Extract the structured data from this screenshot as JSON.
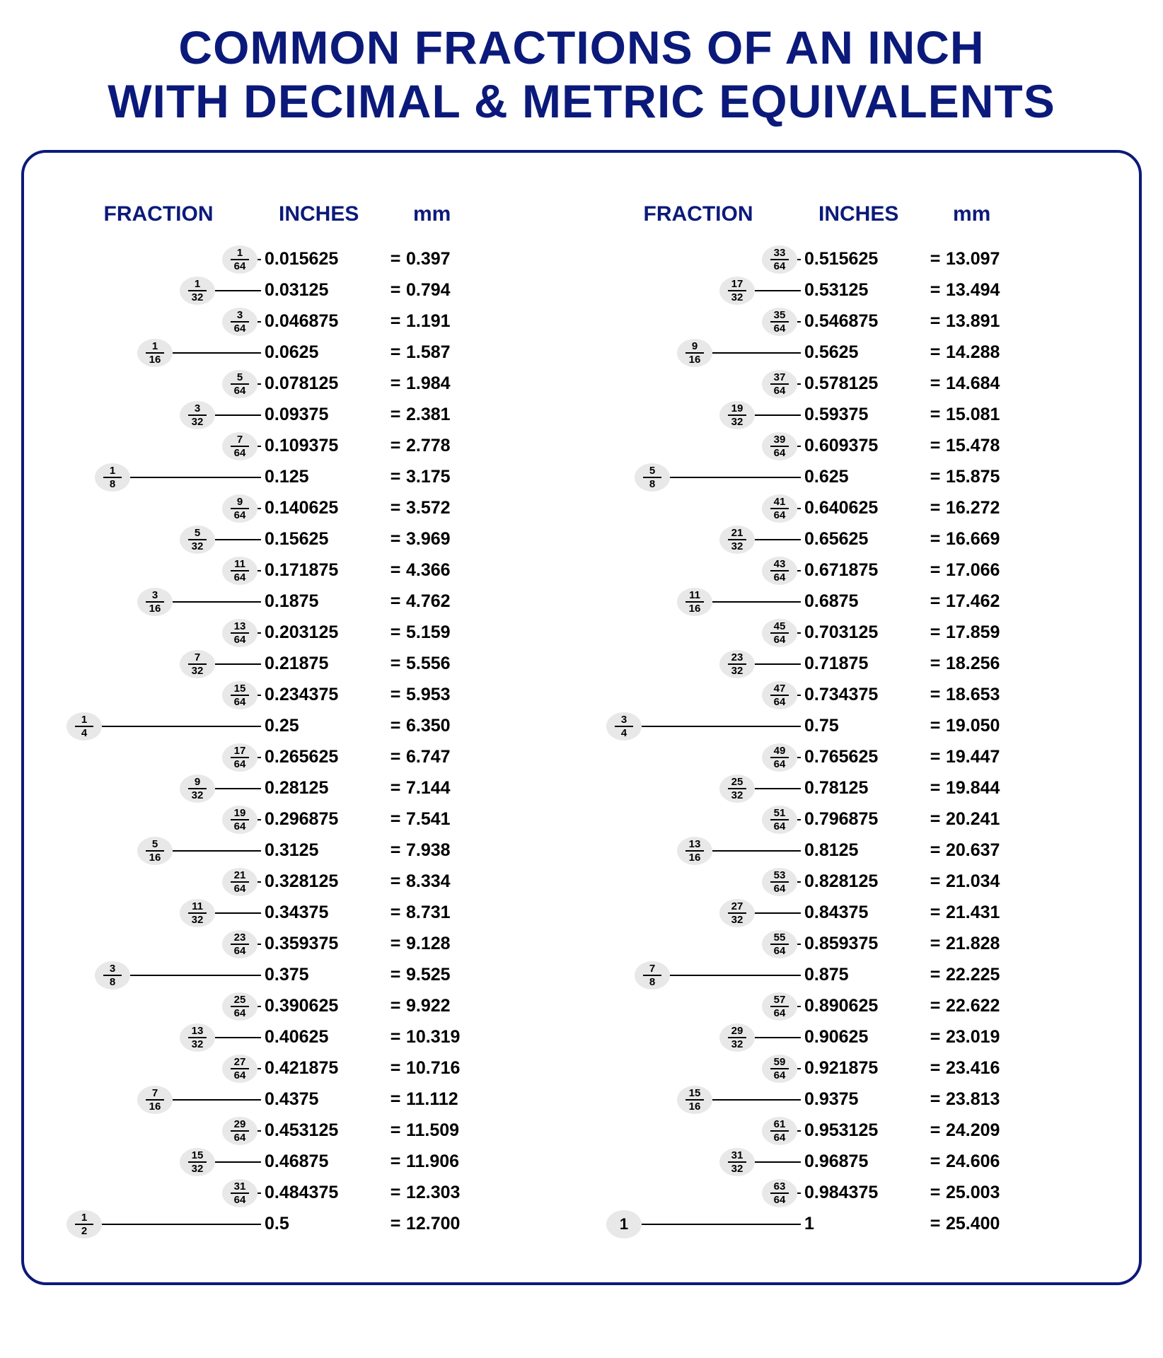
{
  "title_line1": "COMMON FRACTIONS OF AN INCH",
  "title_line2": "WITH DECIMAL & METRIC EQUIVALENTS",
  "headers": {
    "fraction": "FRACTION",
    "inches": "INCHES",
    "mm": "mm"
  },
  "colors": {
    "heading": "#0b1a7a",
    "pill_bg": "#e8e8e8",
    "text": "#000000",
    "background": "#ffffff"
  },
  "slots": {
    "d64": 240,
    "d32": 180,
    "d16": 120,
    "d8": 60,
    "d4": 20,
    "d2": 20,
    "whole": 20
  },
  "line_end": 295,
  "left": [
    {
      "inches": "0.015625",
      "mm": "0.397",
      "fracs": [
        {
          "n": "1",
          "d": "64",
          "slot": "d64"
        }
      ]
    },
    {
      "inches": "0.03125",
      "mm": "0.794",
      "fracs": [
        {
          "n": "1",
          "d": "32",
          "slot": "d32"
        }
      ]
    },
    {
      "inches": "0.046875",
      "mm": "1.191",
      "fracs": [
        {
          "n": "3",
          "d": "64",
          "slot": "d64"
        }
      ]
    },
    {
      "inches": "0.0625",
      "mm": "1.587",
      "fracs": [
        {
          "n": "1",
          "d": "16",
          "slot": "d16"
        }
      ]
    },
    {
      "inches": "0.078125",
      "mm": "1.984",
      "fracs": [
        {
          "n": "5",
          "d": "64",
          "slot": "d64"
        }
      ]
    },
    {
      "inches": "0.09375",
      "mm": "2.381",
      "fracs": [
        {
          "n": "3",
          "d": "32",
          "slot": "d32"
        }
      ]
    },
    {
      "inches": "0.109375",
      "mm": "2.778",
      "fracs": [
        {
          "n": "7",
          "d": "64",
          "slot": "d64"
        }
      ]
    },
    {
      "inches": "0.125",
      "mm": "3.175",
      "fracs": [
        {
          "n": "1",
          "d": "8",
          "slot": "d8"
        }
      ]
    },
    {
      "inches": "0.140625",
      "mm": "3.572",
      "fracs": [
        {
          "n": "9",
          "d": "64",
          "slot": "d64"
        }
      ]
    },
    {
      "inches": "0.15625",
      "mm": "3.969",
      "fracs": [
        {
          "n": "5",
          "d": "32",
          "slot": "d32"
        }
      ]
    },
    {
      "inches": "0.171875",
      "mm": "4.366",
      "fracs": [
        {
          "n": "11",
          "d": "64",
          "slot": "d64"
        }
      ]
    },
    {
      "inches": "0.1875",
      "mm": "4.762",
      "fracs": [
        {
          "n": "3",
          "d": "16",
          "slot": "d16"
        }
      ]
    },
    {
      "inches": "0.203125",
      "mm": "5.159",
      "fracs": [
        {
          "n": "13",
          "d": "64",
          "slot": "d64"
        }
      ]
    },
    {
      "inches": "0.21875",
      "mm": "5.556",
      "fracs": [
        {
          "n": "7",
          "d": "32",
          "slot": "d32"
        }
      ]
    },
    {
      "inches": "0.234375",
      "mm": "5.953",
      "fracs": [
        {
          "n": "15",
          "d": "64",
          "slot": "d64"
        }
      ]
    },
    {
      "inches": "0.25",
      "mm": "6.350",
      "fracs": [
        {
          "n": "1",
          "d": "4",
          "slot": "d4"
        }
      ]
    },
    {
      "inches": "0.265625",
      "mm": "6.747",
      "fracs": [
        {
          "n": "17",
          "d": "64",
          "slot": "d64"
        }
      ]
    },
    {
      "inches": "0.28125",
      "mm": "7.144",
      "fracs": [
        {
          "n": "9",
          "d": "32",
          "slot": "d32"
        }
      ]
    },
    {
      "inches": "0.296875",
      "mm": "7.541",
      "fracs": [
        {
          "n": "19",
          "d": "64",
          "slot": "d64"
        }
      ]
    },
    {
      "inches": "0.3125",
      "mm": "7.938",
      "fracs": [
        {
          "n": "5",
          "d": "16",
          "slot": "d16"
        }
      ]
    },
    {
      "inches": "0.328125",
      "mm": "8.334",
      "fracs": [
        {
          "n": "21",
          "d": "64",
          "slot": "d64"
        }
      ]
    },
    {
      "inches": "0.34375",
      "mm": "8.731",
      "fracs": [
        {
          "n": "11",
          "d": "32",
          "slot": "d32"
        }
      ]
    },
    {
      "inches": "0.359375",
      "mm": "9.128",
      "fracs": [
        {
          "n": "23",
          "d": "64",
          "slot": "d64"
        }
      ]
    },
    {
      "inches": "0.375",
      "mm": "9.525",
      "fracs": [
        {
          "n": "3",
          "d": "8",
          "slot": "d8"
        }
      ]
    },
    {
      "inches": "0.390625",
      "mm": "9.922",
      "fracs": [
        {
          "n": "25",
          "d": "64",
          "slot": "d64"
        }
      ]
    },
    {
      "inches": "0.40625",
      "mm": "10.319",
      "fracs": [
        {
          "n": "13",
          "d": "32",
          "slot": "d32"
        }
      ]
    },
    {
      "inches": "0.421875",
      "mm": "10.716",
      "fracs": [
        {
          "n": "27",
          "d": "64",
          "slot": "d64"
        }
      ]
    },
    {
      "inches": "0.4375",
      "mm": "11.112",
      "fracs": [
        {
          "n": "7",
          "d": "16",
          "slot": "d16"
        }
      ]
    },
    {
      "inches": "0.453125",
      "mm": "11.509",
      "fracs": [
        {
          "n": "29",
          "d": "64",
          "slot": "d64"
        }
      ]
    },
    {
      "inches": "0.46875",
      "mm": "11.906",
      "fracs": [
        {
          "n": "15",
          "d": "32",
          "slot": "d32"
        }
      ]
    },
    {
      "inches": "0.484375",
      "mm": "12.303",
      "fracs": [
        {
          "n": "31",
          "d": "64",
          "slot": "d64"
        }
      ]
    },
    {
      "inches": "0.5",
      "mm": "12.700",
      "fracs": [
        {
          "n": "1",
          "d": "2",
          "slot": "d2"
        }
      ]
    }
  ],
  "right": [
    {
      "inches": "0.515625",
      "mm": "13.097",
      "fracs": [
        {
          "n": "33",
          "d": "64",
          "slot": "d64"
        }
      ]
    },
    {
      "inches": "0.53125",
      "mm": "13.494",
      "fracs": [
        {
          "n": "17",
          "d": "32",
          "slot": "d32"
        }
      ]
    },
    {
      "inches": "0.546875",
      "mm": "13.891",
      "fracs": [
        {
          "n": "35",
          "d": "64",
          "slot": "d64"
        }
      ]
    },
    {
      "inches": "0.5625",
      "mm": "14.288",
      "fracs": [
        {
          "n": "9",
          "d": "16",
          "slot": "d16"
        }
      ]
    },
    {
      "inches": "0.578125",
      "mm": "14.684",
      "fracs": [
        {
          "n": "37",
          "d": "64",
          "slot": "d64"
        }
      ]
    },
    {
      "inches": "0.59375",
      "mm": "15.081",
      "fracs": [
        {
          "n": "19",
          "d": "32",
          "slot": "d32"
        }
      ]
    },
    {
      "inches": "0.609375",
      "mm": "15.478",
      "fracs": [
        {
          "n": "39",
          "d": "64",
          "slot": "d64"
        }
      ]
    },
    {
      "inches": "0.625",
      "mm": "15.875",
      "fracs": [
        {
          "n": "5",
          "d": "8",
          "slot": "d8"
        }
      ]
    },
    {
      "inches": "0.640625",
      "mm": "16.272",
      "fracs": [
        {
          "n": "41",
          "d": "64",
          "slot": "d64"
        }
      ]
    },
    {
      "inches": "0.65625",
      "mm": "16.669",
      "fracs": [
        {
          "n": "21",
          "d": "32",
          "slot": "d32"
        }
      ]
    },
    {
      "inches": "0.671875",
      "mm": "17.066",
      "fracs": [
        {
          "n": "43",
          "d": "64",
          "slot": "d64"
        }
      ]
    },
    {
      "inches": "0.6875",
      "mm": "17.462",
      "fracs": [
        {
          "n": "11",
          "d": "16",
          "slot": "d16"
        }
      ]
    },
    {
      "inches": "0.703125",
      "mm": "17.859",
      "fracs": [
        {
          "n": "45",
          "d": "64",
          "slot": "d64"
        }
      ]
    },
    {
      "inches": "0.71875",
      "mm": "18.256",
      "fracs": [
        {
          "n": "23",
          "d": "32",
          "slot": "d32"
        }
      ]
    },
    {
      "inches": "0.734375",
      "mm": "18.653",
      "fracs": [
        {
          "n": "47",
          "d": "64",
          "slot": "d64"
        }
      ]
    },
    {
      "inches": "0.75",
      "mm": "19.050",
      "fracs": [
        {
          "n": "3",
          "d": "4",
          "slot": "d4"
        }
      ]
    },
    {
      "inches": "0.765625",
      "mm": "19.447",
      "fracs": [
        {
          "n": "49",
          "d": "64",
          "slot": "d64"
        }
      ]
    },
    {
      "inches": "0.78125",
      "mm": "19.844",
      "fracs": [
        {
          "n": "25",
          "d": "32",
          "slot": "d32"
        }
      ]
    },
    {
      "inches": "0.796875",
      "mm": "20.241",
      "fracs": [
        {
          "n": "51",
          "d": "64",
          "slot": "d64"
        }
      ]
    },
    {
      "inches": "0.8125",
      "mm": "20.637",
      "fracs": [
        {
          "n": "13",
          "d": "16",
          "slot": "d16"
        }
      ]
    },
    {
      "inches": "0.828125",
      "mm": "21.034",
      "fracs": [
        {
          "n": "53",
          "d": "64",
          "slot": "d64"
        }
      ]
    },
    {
      "inches": "0.84375",
      "mm": "21.431",
      "fracs": [
        {
          "n": "27",
          "d": "32",
          "slot": "d32"
        }
      ]
    },
    {
      "inches": "0.859375",
      "mm": "21.828",
      "fracs": [
        {
          "n": "55",
          "d": "64",
          "slot": "d64"
        }
      ]
    },
    {
      "inches": "0.875",
      "mm": "22.225",
      "fracs": [
        {
          "n": "7",
          "d": "8",
          "slot": "d8"
        }
      ]
    },
    {
      "inches": "0.890625",
      "mm": "22.622",
      "fracs": [
        {
          "n": "57",
          "d": "64",
          "slot": "d64"
        }
      ]
    },
    {
      "inches": "0.90625",
      "mm": "23.019",
      "fracs": [
        {
          "n": "29",
          "d": "32",
          "slot": "d32"
        }
      ]
    },
    {
      "inches": "0.921875",
      "mm": "23.416",
      "fracs": [
        {
          "n": "59",
          "d": "64",
          "slot": "d64"
        }
      ]
    },
    {
      "inches": "0.9375",
      "mm": "23.813",
      "fracs": [
        {
          "n": "15",
          "d": "16",
          "slot": "d16"
        }
      ]
    },
    {
      "inches": "0.953125",
      "mm": "24.209",
      "fracs": [
        {
          "n": "61",
          "d": "64",
          "slot": "d64"
        }
      ]
    },
    {
      "inches": "0.96875",
      "mm": "24.606",
      "fracs": [
        {
          "n": "31",
          "d": "32",
          "slot": "d32"
        }
      ]
    },
    {
      "inches": "0.984375",
      "mm": "25.003",
      "fracs": [
        {
          "n": "63",
          "d": "64",
          "slot": "d64"
        }
      ]
    },
    {
      "inches": "1",
      "mm": "25.400",
      "fracs": [
        {
          "n": "1",
          "d": "",
          "slot": "whole",
          "whole": true
        }
      ]
    }
  ]
}
